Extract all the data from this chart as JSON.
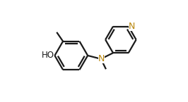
{
  "background_color": "#ffffff",
  "bond_color": "#1a1a1a",
  "atom_color_N": "#b8860b",
  "bond_width": 1.6,
  "dbo": 0.022,
  "figsize": [
    2.66,
    1.45
  ],
  "dpi": 100,
  "xlim": [
    0.0,
    1.0
  ],
  "ylim": [
    0.05,
    0.95
  ]
}
